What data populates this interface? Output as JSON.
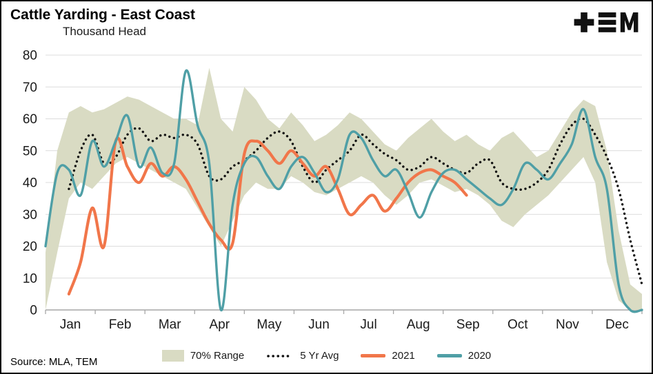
{
  "title": "Cattle Yarding - East Coast",
  "subtitle": "Thousand Head",
  "source": "Source: MLA, TEM",
  "logo": {
    "alt": "TEM"
  },
  "colors": {
    "band": "#d9dbc3",
    "avg": "#111111",
    "y2021": "#f1764a",
    "y2020": "#4f9fa6",
    "grid": "#dcdcdc",
    "axis": "#a6a6a6",
    "text": "#1a1a1a"
  },
  "chart_data": {
    "type": "line",
    "title": "Cattle Yarding - East Coast",
    "ylabel": "Thousand Head",
    "xlabel": "",
    "x_unit": "week",
    "n_points": 52,
    "x_tick_labels": [
      "Jan",
      "Feb",
      "Mar",
      "Apr",
      "May",
      "Jun",
      "Jul",
      "Aug",
      "Sep",
      "Oct",
      "Nov",
      "Dec"
    ],
    "y_ticks": [
      0,
      10,
      20,
      30,
      40,
      50,
      60,
      70,
      80
    ],
    "ylim": [
      0,
      80
    ],
    "grid": true,
    "legend_position": "bottom",
    "series": [
      {
        "name": "70% Range",
        "type": "band",
        "upper": [
          18,
          50,
          62,
          64,
          62,
          63,
          65,
          67,
          66,
          64,
          62,
          60,
          60,
          58,
          76,
          60,
          56,
          70,
          66,
          60,
          57,
          62,
          58,
          53,
          55,
          58,
          62,
          60,
          56,
          52,
          50,
          54,
          57,
          60,
          56,
          53,
          55,
          52,
          50,
          54,
          56,
          52,
          48,
          50,
          56,
          62,
          66,
          64,
          50,
          25,
          8,
          5
        ],
        "lower": [
          0,
          18,
          35,
          40,
          38,
          42,
          46,
          48,
          46,
          44,
          42,
          40,
          38,
          32,
          26,
          20,
          28,
          36,
          40,
          38,
          38,
          42,
          40,
          37,
          36,
          38,
          40,
          42,
          40,
          36,
          33,
          36,
          40,
          41,
          39,
          37,
          38,
          36,
          33,
          28,
          26,
          30,
          33,
          36,
          40,
          44,
          48,
          40,
          15,
          3,
          0,
          0
        ]
      },
      {
        "name": "5 Yr Avg",
        "type": "dotted-line",
        "values": [
          null,
          null,
          38,
          50,
          55,
          46,
          48,
          55,
          57,
          53,
          55,
          54,
          55,
          52,
          42,
          41,
          45,
          47,
          50,
          54,
          56,
          53,
          45,
          40,
          44,
          47,
          50,
          55,
          52,
          49,
          47,
          44,
          45,
          48,
          46,
          44,
          43,
          46,
          47,
          40,
          38,
          38,
          40,
          44,
          52,
          58,
          60,
          55,
          48,
          38,
          22,
          8
        ]
      },
      {
        "name": "2021",
        "type": "line",
        "values": [
          null,
          null,
          5,
          15,
          32,
          20,
          53,
          45,
          40,
          46,
          42,
          45,
          41,
          34,
          27,
          22,
          21,
          49,
          53,
          50,
          46,
          50,
          46,
          42,
          45,
          38,
          30,
          33,
          36,
          31,
          35,
          40,
          43,
          44,
          42,
          40,
          36,
          null,
          null,
          null,
          null,
          null,
          null,
          null,
          null,
          null,
          null,
          null,
          null,
          null,
          null,
          null
        ]
      },
      {
        "name": "2020",
        "type": "line",
        "values": [
          20,
          43,
          44,
          36,
          53,
          45,
          53,
          61,
          45,
          51,
          43,
          46,
          75,
          58,
          46,
          0,
          33,
          46,
          48,
          42,
          38,
          45,
          48,
          43,
          37,
          41,
          55,
          54,
          47,
          42,
          44,
          37,
          29,
          37,
          43,
          44,
          41,
          38,
          35,
          33,
          38,
          46,
          44,
          41,
          46,
          52,
          63,
          48,
          38,
          8,
          0,
          0
        ]
      }
    ]
  }
}
